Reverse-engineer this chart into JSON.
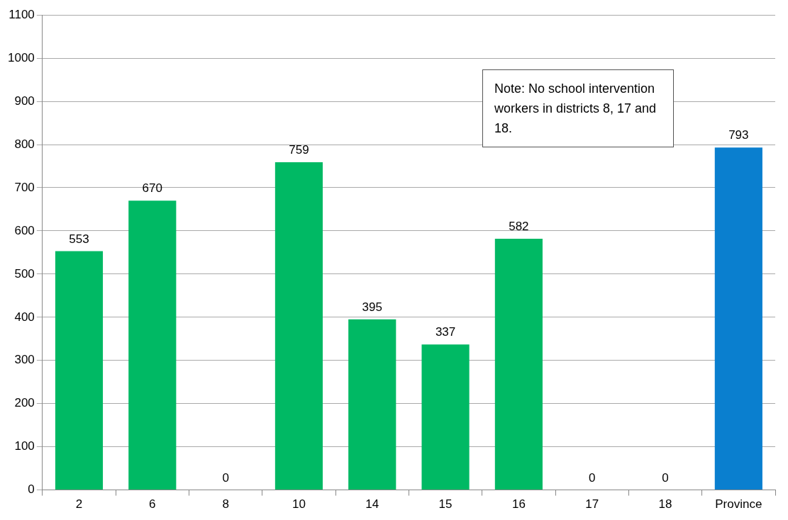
{
  "chart_data": {
    "type": "bar",
    "categories": [
      "2",
      "6",
      "8",
      "10",
      "14",
      "15",
      "16",
      "17",
      "18",
      "Province"
    ],
    "values": [
      553,
      670,
      0,
      759,
      395,
      337,
      582,
      0,
      0,
      793
    ],
    "colors": [
      "#00b964",
      "#00b964",
      "#00b964",
      "#00b964",
      "#00b964",
      "#00b964",
      "#00b964",
      "#00b964",
      "#00b964",
      "#0a7fcf"
    ],
    "ylim": [
      0,
      1100
    ],
    "yticks": [
      0,
      100,
      200,
      300,
      400,
      500,
      600,
      700,
      800,
      900,
      1000,
      1100
    ],
    "grid": "y",
    "data_labels": true,
    "legend": false,
    "annotations": [
      "Note: No school intervention workers in districts 8, 17 and 18."
    ]
  }
}
